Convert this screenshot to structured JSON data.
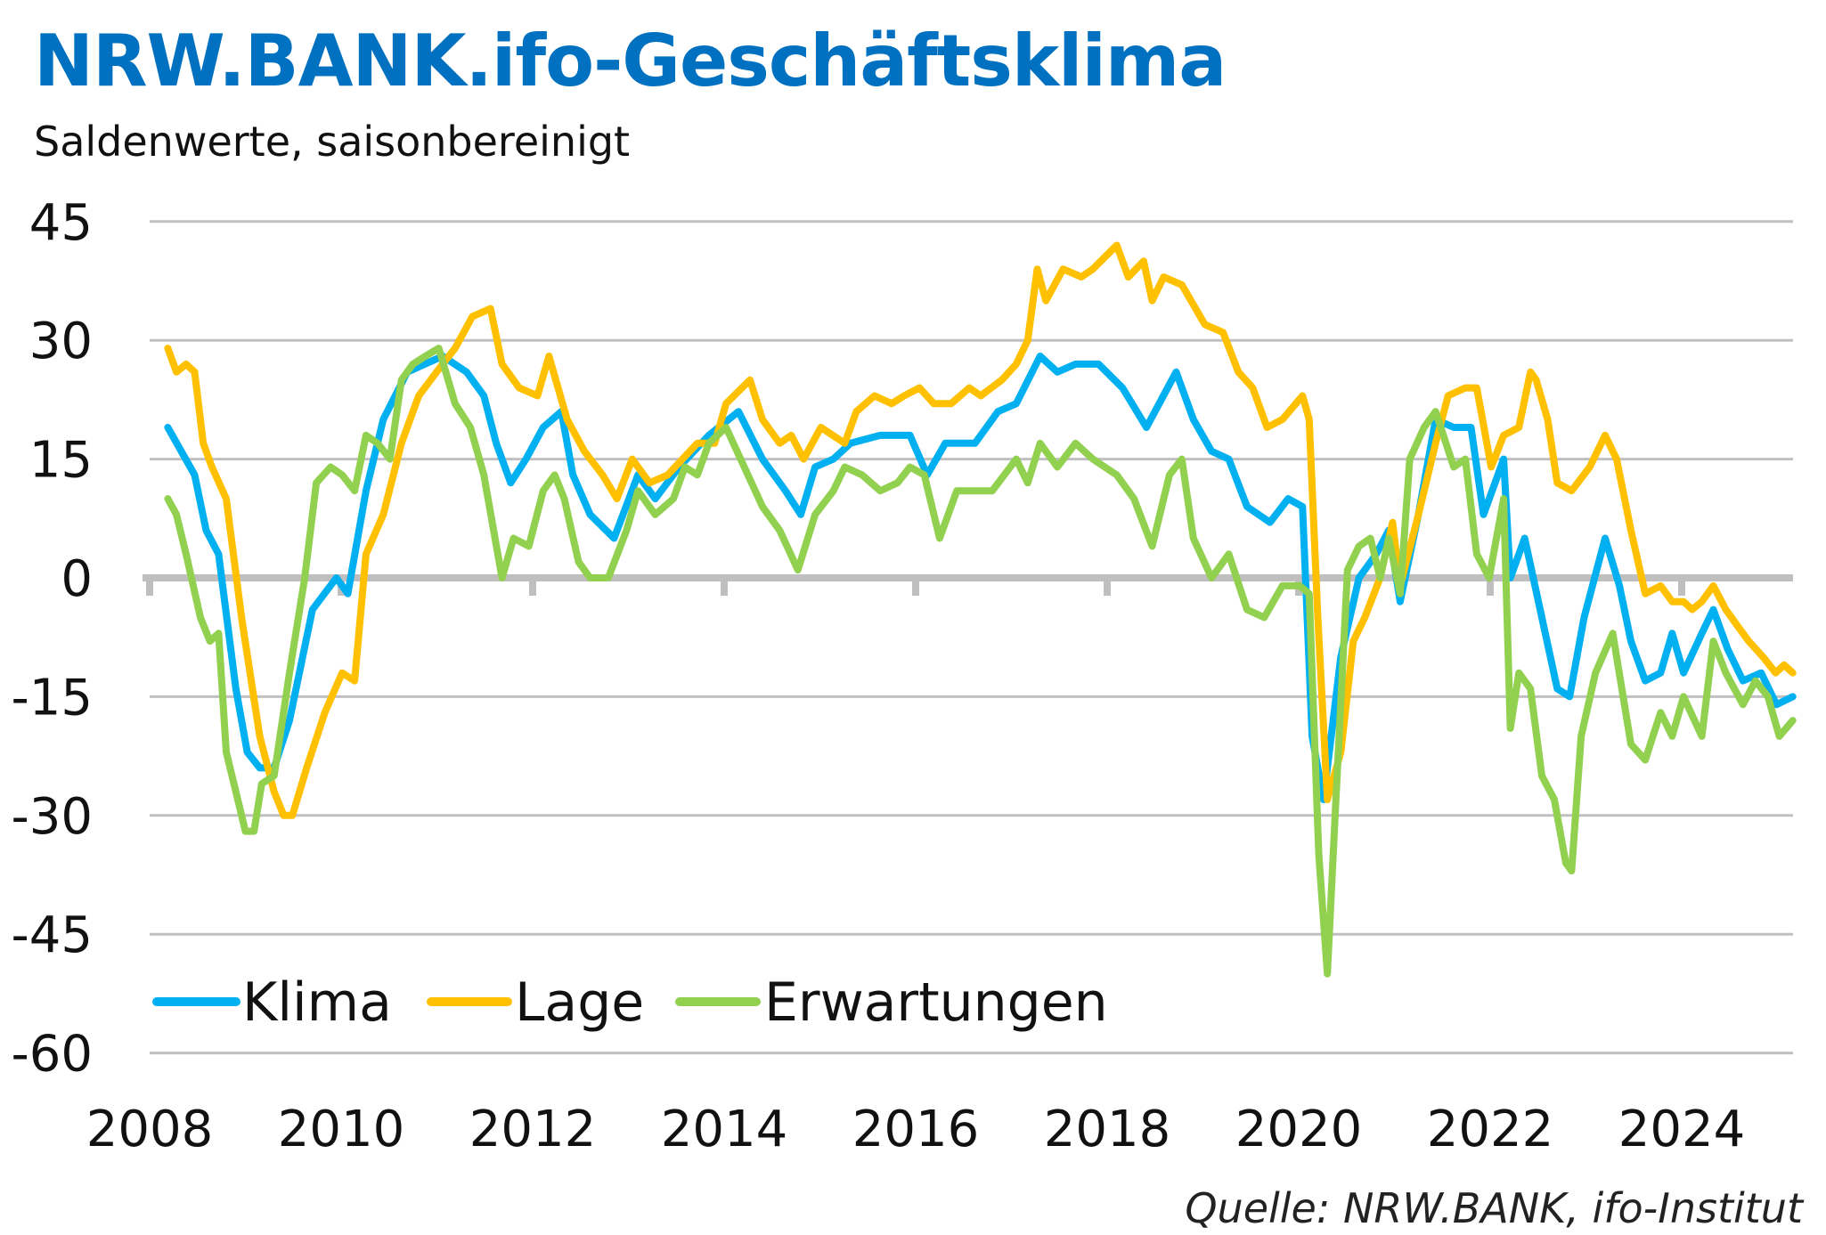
{
  "title": "NRW.BANK.ifo-Geschäftsklima",
  "subtitle": "Saldenwerte, saisonbereinigt",
  "source": "Quelle: NRW.BANK, ifo-Institut",
  "chart_data": {
    "type": "line",
    "title": "NRW.BANK.ifo-Geschäftsklima",
    "subtitle": "Saldenwerte, saisonbereinigt",
    "xlabel": "",
    "ylabel": "",
    "xlim": [
      2008,
      2025.2
    ],
    "ylim": [
      -60,
      45
    ],
    "x_ticks": [
      "2008",
      "2010",
      "2012",
      "2014",
      "2016",
      "2018",
      "2020",
      "2022",
      "2024"
    ],
    "y_ticks": [
      45,
      30,
      15,
      0,
      -15,
      -30,
      -45,
      -60
    ],
    "grid": true,
    "legend_position": "bottom-left",
    "series": [
      {
        "name": "Klima",
        "color": "#00B0F0",
        "x": [
          2008.19,
          2008.47,
          2008.59,
          2008.72,
          2008.9,
          2009.02,
          2009.15,
          2009.3,
          2009.46,
          2009.7,
          2009.95,
          2010.07,
          2010.26,
          2010.44,
          2010.69,
          2011.06,
          2011.31,
          2011.49,
          2011.62,
          2011.77,
          2011.93,
          2012.11,
          2012.3,
          2012.42,
          2012.6,
          2012.85,
          2013.1,
          2013.28,
          2013.53,
          2013.84,
          2014.15,
          2014.4,
          2014.64,
          2014.8,
          2014.95,
          2015.14,
          2015.32,
          2015.63,
          2015.94,
          2016.12,
          2016.31,
          2016.62,
          2016.86,
          2017.05,
          2017.3,
          2017.48,
          2017.67,
          2017.91,
          2018.16,
          2018.41,
          2018.72,
          2018.9,
          2019.09,
          2019.27,
          2019.46,
          2019.7,
          2019.89,
          2020.04,
          2020.14,
          2020.26,
          2020.44,
          2020.63,
          2020.81,
          2020.94,
          2021.06,
          2021.25,
          2021.43,
          2021.62,
          2021.8,
          2021.93,
          2022.14,
          2022.21,
          2022.36,
          2022.54,
          2022.7,
          2022.83,
          2022.98,
          2023.2,
          2023.35,
          2023.47,
          2023.62,
          2023.78,
          2023.9,
          2024.02,
          2024.21,
          2024.33,
          2024.48,
          2024.64,
          2024.83,
          2024.99,
          2025.16
        ],
        "y": [
          19,
          13,
          6,
          3,
          -14,
          -22,
          -24,
          -24,
          -18,
          -4,
          0,
          -2,
          11,
          20,
          26,
          28,
          26,
          23,
          17,
          12,
          15,
          19,
          21,
          13,
          8,
          5,
          13,
          10,
          14,
          18,
          21,
          15,
          11,
          8,
          14,
          15,
          17,
          18,
          18,
          13,
          17,
          17,
          21,
          22,
          28,
          26,
          27,
          27,
          24,
          19,
          26,
          20,
          16,
          15,
          9,
          7,
          10,
          9,
          -20,
          -28,
          -10,
          0,
          3,
          6,
          -3,
          8,
          20,
          19,
          19,
          8,
          15,
          0,
          5,
          -5,
          -14,
          -15,
          -5,
          5,
          -1,
          -8,
          -13,
          -12,
          -7,
          -12,
          -7,
          -4,
          -9,
          -13,
          -12,
          -16,
          -15
        ]
      },
      {
        "name": "Lage",
        "color": "#FFC000",
        "x": [
          2008.19,
          2008.28,
          2008.38,
          2008.47,
          2008.56,
          2008.65,
          2008.8,
          2008.96,
          2009.15,
          2009.3,
          2009.4,
          2009.49,
          2009.64,
          2009.83,
          2010.01,
          2010.14,
          2010.26,
          2010.44,
          2010.63,
          2010.81,
          2011.06,
          2011.19,
          2011.37,
          2011.56,
          2011.68,
          2011.86,
          2012.05,
          2012.17,
          2012.36,
          2012.54,
          2012.73,
          2012.88,
          2013.04,
          2013.22,
          2013.41,
          2013.72,
          2013.9,
          2014.02,
          2014.27,
          2014.4,
          2014.58,
          2014.7,
          2014.83,
          2015.01,
          2015.26,
          2015.38,
          2015.57,
          2015.75,
          2015.88,
          2016.04,
          2016.19,
          2016.37,
          2016.56,
          2016.68,
          2016.9,
          2017.05,
          2017.17,
          2017.27,
          2017.36,
          2017.54,
          2017.73,
          2017.85,
          2018.1,
          2018.22,
          2018.38,
          2018.47,
          2018.59,
          2018.78,
          2019.02,
          2019.21,
          2019.37,
          2019.52,
          2019.67,
          2019.83,
          2020.04,
          2020.11,
          2020.2,
          2020.3,
          2020.44,
          2020.57,
          2020.69,
          2020.85,
          2020.98,
          2021.06,
          2021.25,
          2021.43,
          2021.56,
          2021.74,
          2021.86,
          2022.01,
          2022.14,
          2022.3,
          2022.42,
          2022.48,
          2022.6,
          2022.7,
          2022.85,
          2023.04,
          2023.2,
          2023.32,
          2023.47,
          2023.62,
          2023.78,
          2023.9,
          2024.02,
          2024.11,
          2024.21,
          2024.33,
          2024.46,
          2024.58,
          2024.7,
          2024.85,
          2024.98,
          2025.07,
          2025.16
        ],
        "y": [
          29,
          26,
          27,
          26,
          17,
          14,
          10,
          -5,
          -20,
          -27,
          -30,
          -30,
          -24,
          -17,
          -12,
          -13,
          3,
          8,
          17,
          23,
          27,
          29,
          33,
          34,
          27,
          24,
          23,
          28,
          20,
          16,
          13,
          10,
          15,
          12,
          13,
          17,
          17,
          22,
          25,
          20,
          17,
          18,
          15,
          19,
          17,
          21,
          23,
          22,
          23,
          24,
          22,
          22,
          24,
          23,
          25,
          27,
          30,
          39,
          35,
          39,
          38,
          39,
          42,
          38,
          40,
          35,
          38,
          37,
          32,
          31,
          26,
          24,
          19,
          20,
          23,
          20,
          -5,
          -28,
          -22,
          -8,
          -5,
          0,
          7,
          -1,
          8,
          17,
          23,
          24,
          24,
          14,
          18,
          19,
          26,
          25,
          20,
          12,
          11,
          14,
          18,
          15,
          6,
          -2,
          -1,
          -3,
          -3,
          -4,
          -3,
          -1,
          -4,
          -6,
          -8,
          -10,
          -12,
          -11,
          -12
        ]
      },
      {
        "name": "Erwartungen",
        "color": "#92D050",
        "x": [
          2008.19,
          2008.28,
          2008.38,
          2008.53,
          2008.63,
          2008.72,
          2008.8,
          2008.9,
          2009.0,
          2009.09,
          2009.17,
          2009.3,
          2009.46,
          2009.62,
          2009.74,
          2009.89,
          2010.01,
          2010.14,
          2010.26,
          2010.38,
          2010.51,
          2010.63,
          2010.75,
          2010.88,
          2011.02,
          2011.19,
          2011.35,
          2011.49,
          2011.68,
          2011.8,
          2011.96,
          2012.11,
          2012.23,
          2012.33,
          2012.48,
          2012.6,
          2012.79,
          2012.98,
          2013.1,
          2013.28,
          2013.47,
          2013.59,
          2013.72,
          2013.84,
          2014.02,
          2014.21,
          2014.4,
          2014.58,
          2014.77,
          2014.95,
          2015.14,
          2015.26,
          2015.44,
          2015.63,
          2015.81,
          2015.94,
          2016.09,
          2016.25,
          2016.43,
          2016.62,
          2016.8,
          2017.05,
          2017.17,
          2017.3,
          2017.48,
          2017.67,
          2017.85,
          2018.1,
          2018.28,
          2018.47,
          2018.65,
          2018.78,
          2018.9,
          2019.09,
          2019.27,
          2019.46,
          2019.64,
          2019.83,
          2020.01,
          2020.11,
          2020.21,
          2020.3,
          2020.38,
          2020.51,
          2020.63,
          2020.75,
          2020.85,
          2020.94,
          2021.06,
          2021.16,
          2021.31,
          2021.43,
          2021.62,
          2021.74,
          2021.86,
          2021.99,
          2022.14,
          2022.21,
          2022.3,
          2022.42,
          2022.54,
          2022.67,
          2022.79,
          2022.85,
          2022.95,
          2023.1,
          2023.28,
          2023.47,
          2023.62,
          2023.78,
          2023.9,
          2024.02,
          2024.21,
          2024.33,
          2024.46,
          2024.64,
          2024.77,
          2024.9,
          2025.02,
          2025.16
        ],
        "y": [
          10,
          8,
          3,
          -5,
          -8,
          -7,
          -22,
          -27,
          -32,
          -32,
          -26,
          -25,
          -12,
          0,
          12,
          14,
          13,
          11,
          18,
          17,
          15,
          25,
          27,
          28,
          29,
          22,
          19,
          13,
          0,
          5,
          4,
          11,
          13,
          10,
          2,
          0,
          0,
          6,
          11,
          8,
          10,
          14,
          13,
          17,
          19,
          14,
          9,
          6,
          1,
          8,
          11,
          14,
          13,
          11,
          12,
          14,
          13,
          5,
          11,
          11,
          11,
          15,
          12,
          17,
          14,
          17,
          15,
          13,
          10,
          4,
          13,
          15,
          5,
          0,
          3,
          -4,
          -5,
          -1,
          -1,
          -2,
          -35,
          -50,
          -30,
          1,
          4,
          5,
          0,
          5,
          -2,
          15,
          19,
          21,
          14,
          15,
          3,
          0,
          10,
          -19,
          -12,
          -14,
          -25,
          -28,
          -36,
          -37,
          -20,
          -12,
          -7,
          -21,
          -23,
          -17,
          -20,
          -15,
          -20,
          -8,
          -12,
          -16,
          -13,
          -15,
          -20,
          -18
        ]
      }
    ]
  }
}
